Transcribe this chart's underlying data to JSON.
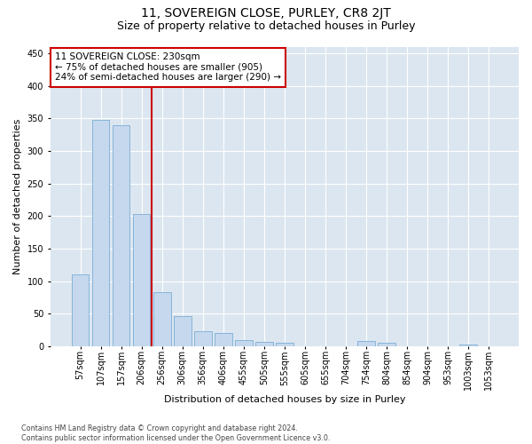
{
  "title": "11, SOVEREIGN CLOSE, PURLEY, CR8 2JT",
  "subtitle": "Size of property relative to detached houses in Purley",
  "xlabel": "Distribution of detached houses by size in Purley",
  "ylabel": "Number of detached properties",
  "footnote": "Contains HM Land Registry data © Crown copyright and database right 2024.\nContains public sector information licensed under the Open Government Licence v3.0.",
  "bar_labels": [
    "57sqm",
    "107sqm",
    "157sqm",
    "206sqm",
    "256sqm",
    "306sqm",
    "356sqm",
    "406sqm",
    "455sqm",
    "505sqm",
    "555sqm",
    "605sqm",
    "655sqm",
    "704sqm",
    "754sqm",
    "804sqm",
    "854sqm",
    "904sqm",
    "953sqm",
    "1003sqm",
    "1053sqm"
  ],
  "bar_values": [
    110,
    347,
    340,
    203,
    83,
    46,
    23,
    20,
    10,
    7,
    6,
    0,
    0,
    0,
    8,
    6,
    0,
    0,
    0,
    3,
    0
  ],
  "bar_color": "#c5d8ee",
  "bar_edge_color": "#7aadd4",
  "vline_color": "#cc0000",
  "annotation_text": "11 SOVEREIGN CLOSE: 230sqm\n← 75% of detached houses are smaller (905)\n24% of semi-detached houses are larger (290) →",
  "annotation_box_color": "#ffffff",
  "annotation_box_edge": "#cc0000",
  "ylim": [
    0,
    460
  ],
  "yticks": [
    0,
    50,
    100,
    150,
    200,
    250,
    300,
    350,
    400,
    450
  ],
  "plot_bg": "#dce6f0",
  "fig_bg": "#ffffff",
  "title_fontsize": 10,
  "subtitle_fontsize": 9,
  "axis_label_fontsize": 8,
  "tick_fontsize": 7,
  "annot_fontsize": 7.5,
  "footnote_fontsize": 5.8
}
